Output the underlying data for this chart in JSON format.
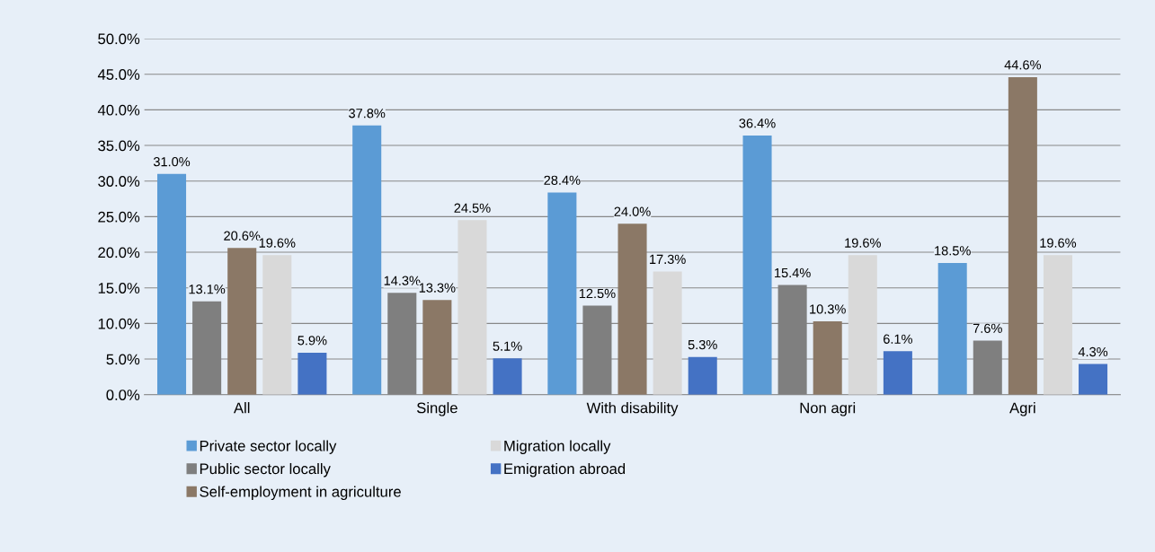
{
  "chart_data": {
    "type": "bar",
    "categories": [
      "All",
      "Single",
      "With disability",
      "Non agri",
      "Agri"
    ],
    "series": [
      {
        "name": "Private sector locally",
        "color": "#5b9bd5",
        "values": [
          31.0,
          37.8,
          28.4,
          36.4,
          18.5
        ],
        "value_labels": [
          "31.0%",
          "37.8%",
          "28.4%",
          "36.4%",
          "18.5%"
        ]
      },
      {
        "name": "Public sector locally",
        "color": "#7f7f7f",
        "values": [
          13.1,
          14.3,
          12.5,
          15.4,
          7.6
        ],
        "value_labels": [
          "13.1%",
          "14.3%",
          "12.5%",
          "15.4%",
          "7.6%"
        ]
      },
      {
        "name": "Self-employment in agriculture",
        "color": "#8b7866",
        "values": [
          20.6,
          13.3,
          24.0,
          10.3,
          44.6
        ],
        "value_labels": [
          "20.6%",
          "13.3%",
          "24.0%",
          "10.3%",
          "44.6%"
        ]
      },
      {
        "name": "Migration locally",
        "color": "#d9d9d9",
        "values": [
          19.6,
          24.5,
          17.3,
          19.6,
          19.6
        ],
        "value_labels": [
          "19.6%",
          "24.5%",
          "17.3%",
          "19.6%",
          "19.6%"
        ]
      },
      {
        "name": "Emigration abroad",
        "color": "#4472c4",
        "values": [
          5.9,
          5.1,
          5.3,
          6.1,
          4.3
        ],
        "value_labels": [
          "5.9%",
          "5.1%",
          "5.3%",
          "6.1%",
          "4.3%"
        ]
      }
    ],
    "ylim": [
      0,
      50
    ],
    "yticks": [
      {
        "value": 0,
        "label": "0.0%"
      },
      {
        "value": 5,
        "label": "5.0%"
      },
      {
        "value": 10,
        "label": "10.0%"
      },
      {
        "value": 15,
        "label": "15.0%"
      },
      {
        "value": 20,
        "label": "20.0%"
      },
      {
        "value": 25,
        "label": "25.0%"
      },
      {
        "value": 30,
        "label": "30.0%"
      },
      {
        "value": 35,
        "label": "35.0%"
      },
      {
        "value": 40,
        "label": "40.0%"
      },
      {
        "value": 45,
        "label": "45.0%"
      },
      {
        "value": 50,
        "label": "50.0%"
      }
    ],
    "grid": "y",
    "legend": "bottom"
  }
}
